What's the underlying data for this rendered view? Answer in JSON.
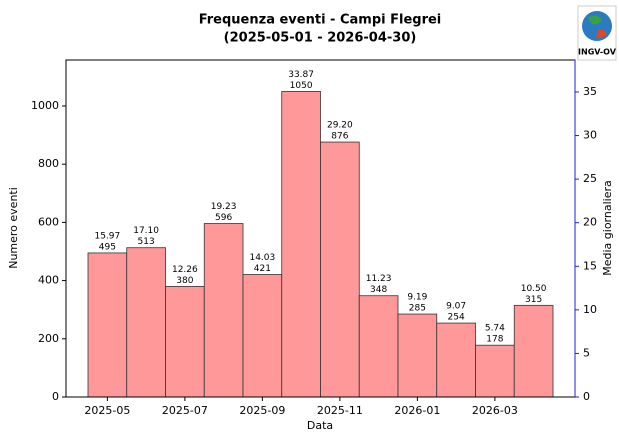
{
  "chart_data": {
    "type": "bar",
    "title": "Frequenza eventi - Campi Flegrei",
    "subtitle": "(2025-05-01 - 2026-04-30)",
    "logo_text": "INGV-OV",
    "xlabel": "Data",
    "ylabel": "Numero eventi",
    "y2label": "Media giornaliera",
    "categories": [
      "2025-05",
      null,
      "2025-07",
      null,
      "2025-09",
      null,
      "2025-11",
      null,
      "2026-01",
      null,
      "2026-03",
      null
    ],
    "values": [
      495,
      513,
      380,
      596,
      421,
      1050,
      876,
      348,
      285,
      254,
      178,
      315
    ],
    "color": "#ff9999",
    "edgecolor": "#333333",
    "daily_mean": {
      "axis": "y2",
      "color": "#1f1fd8",
      "values": [
        15.97,
        17.1,
        12.26,
        19.23,
        14.03,
        33.87,
        29.2,
        11.23,
        9.19,
        9.07,
        5.74,
        10.5
      ],
      "value_labels": [
        "15.97",
        "17.10",
        "12.26",
        "19.23",
        "14.03",
        "33.87",
        "29.20",
        "11.23",
        "9.19",
        "9.07",
        "5.74",
        "10.50"
      ]
    },
    "ylim": [
      0,
      1158
    ],
    "yticks": [
      0,
      200,
      400,
      600,
      800,
      1000
    ],
    "y2lim": [
      0,
      38.67
    ],
    "y2ticks": [
      0,
      5,
      10,
      15,
      20,
      25,
      30,
      35
    ]
  }
}
